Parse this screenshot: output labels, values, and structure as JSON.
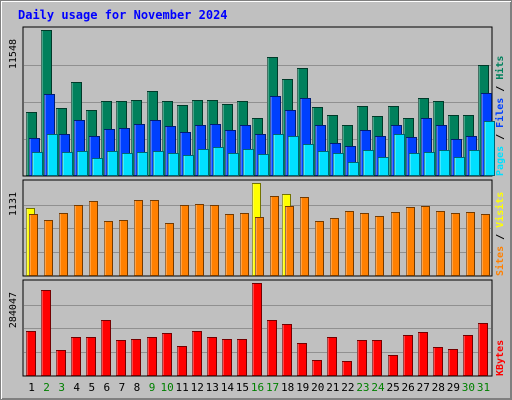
{
  "chart_data": {
    "title": "Daily usage for November 2024",
    "days": [
      "1",
      "2",
      "3",
      "4",
      "5",
      "6",
      "7",
      "8",
      "9",
      "10",
      "11",
      "12",
      "13",
      "14",
      "15",
      "16",
      "17",
      "18",
      "19",
      "20",
      "21",
      "22",
      "23",
      "24",
      "25",
      "26",
      "27",
      "28",
      "29",
      "30",
      "31"
    ],
    "weekend_days": [
      "2",
      "3",
      "9",
      "10",
      "16",
      "17",
      "23",
      "24",
      "30",
      "31"
    ],
    "day_colors": {
      "weekday": "#000000",
      "weekend": "#008000"
    },
    "panels": [
      {
        "type": "bar",
        "max_label": "11548",
        "ymax": 11548,
        "labels": [
          "Pages",
          "Files",
          "Hits"
        ],
        "separator": " / ",
        "series": [
          {
            "name": "Hits",
            "color": "#00805c",
            "values": [
              5050,
              11548,
              5400,
              7450,
              5250,
              5950,
              5950,
              6000,
              6750,
              5900,
              5650,
              6000,
              6000,
              5700,
              5950,
              4600,
              9450,
              7650,
              8550,
              5450,
              4800,
              4000,
              5500,
              4750,
              5500,
              4550,
              6200,
              5900,
              4850,
              4850,
              8800
            ]
          },
          {
            "name": "Files",
            "color": "#0040ff",
            "values": [
              3000,
              6500,
              3300,
              4400,
              3200,
              3700,
              3800,
              4100,
              4450,
              3950,
              3500,
              4000,
              4100,
              3600,
              4050,
              3300,
              6300,
              5250,
              6150,
              4000,
              2600,
              2400,
              3600,
              3150,
              4000,
              3100,
              4600,
              4000,
              2950,
              3200,
              6600
            ]
          },
          {
            "name": "Pages",
            "color": "#00e0ff",
            "values": [
              1900,
              3350,
              1900,
              2000,
              1400,
              2000,
              1800,
              1900,
              1950,
              1850,
              1650,
              2150,
              2300,
              1850,
              2150,
              1750,
              3300,
              3200,
              2500,
              1950,
              1800,
              1100,
              2050,
              1500,
              3300,
              1800,
              1900,
              2050,
              1500,
              2050,
              4350
            ]
          }
        ]
      },
      {
        "type": "bar",
        "max_label": "1131",
        "ymax": 1131,
        "labels": [
          "Sites",
          "Visits"
        ],
        "separator": " / ",
        "series": [
          {
            "name": "Visits",
            "color": "#ffff00",
            "values": [
              830,
              0,
              0,
              0,
              0,
              0,
              0,
              0,
              0,
              0,
              0,
              0,
              0,
              0,
              0,
              1131,
              0,
              1000,
              0,
              0,
              0,
              0,
              0,
              0,
              0,
              0,
              0,
              0,
              0,
              0,
              0
            ]
          },
          {
            "name": "Sites",
            "color": "#ff8000",
            "values": [
              750,
              680,
              770,
              865,
              910,
              670,
              675,
              925,
              930,
              645,
              865,
              880,
              860,
              760,
              770,
              715,
              975,
              855,
              955,
              665,
              710,
              785,
              770,
              730,
              780,
              835,
              855,
              785,
              770,
              780,
              755
            ]
          }
        ]
      },
      {
        "type": "bar",
        "max_label": "284047",
        "ymax": 284047,
        "labels": [
          "KBytes"
        ],
        "separator": "",
        "series": [
          {
            "name": "KBytes",
            "color": "#ff0000",
            "values": [
              138000,
              263000,
              80000,
              118000,
              118000,
              171000,
              111000,
              112000,
              119000,
              132000,
              92000,
              137000,
              119000,
              112000,
              112000,
              284047,
              172000,
              160000,
              102000,
              50000,
              120000,
              45000,
              111000,
              110000,
              64000,
              126000,
              135000,
              89000,
              82000,
              125000,
              163000
            ]
          }
        ]
      }
    ]
  }
}
